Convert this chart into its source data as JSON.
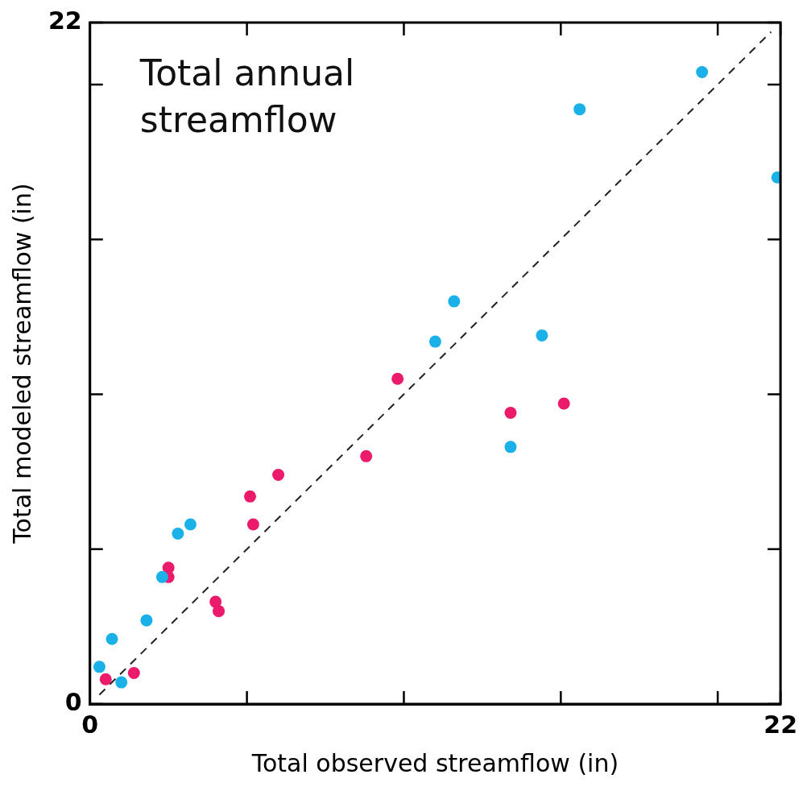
{
  "chart_data": {
    "type": "scatter",
    "title": "Total annual streamflow",
    "xlabel": "Total observed streamflow (in)",
    "ylabel": "Total modeled streamflow (in)",
    "xlim": [
      0,
      22
    ],
    "ylim": [
      0,
      22
    ],
    "xticks": [
      0,
      {
        "value": 5,
        "label": null
      },
      {
        "value": 10,
        "label": null
      },
      {
        "value": 15,
        "label": null
      },
      {
        "value": 20,
        "label": null
      },
      22
    ],
    "yticks": [
      0,
      {
        "value": 5,
        "label": null
      },
      {
        "value": 10,
        "label": null
      },
      {
        "value": 15,
        "label": null
      },
      {
        "value": 20,
        "label": null
      },
      22
    ],
    "grid": false,
    "legend": false,
    "marker": "circle",
    "series": [
      {
        "color": "#1ab0e8",
        "x": [
          0.3,
          0.7,
          1.0,
          1.8,
          2.3,
          2.8,
          3.2,
          11.0,
          11.6,
          14.4,
          13.4,
          15.6,
          19.5,
          21.9
        ],
        "values": [
          1.2,
          2.1,
          0.7,
          2.7,
          4.1,
          5.5,
          5.8,
          11.7,
          13.0,
          11.9,
          8.3,
          19.2,
          20.4,
          17.0
        ]
      },
      {
        "color": "#ec1a6a",
        "x": [
          0.5,
          1.4,
          2.5,
          2.5,
          4.0,
          4.1,
          5.1,
          5.2,
          6.0,
          8.8,
          9.8,
          13.4,
          15.1
        ],
        "values": [
          0.8,
          1.0,
          4.4,
          4.1,
          3.3,
          3.0,
          6.7,
          5.8,
          7.4,
          8.0,
          10.5,
          9.4,
          9.7
        ]
      },
      {
        "type": "line",
        "color": "#222222",
        "line_style": "dashed",
        "marker": "none",
        "x": [
          0.3,
          21.7
        ],
        "values": [
          0.3,
          21.7
        ]
      }
    ]
  }
}
